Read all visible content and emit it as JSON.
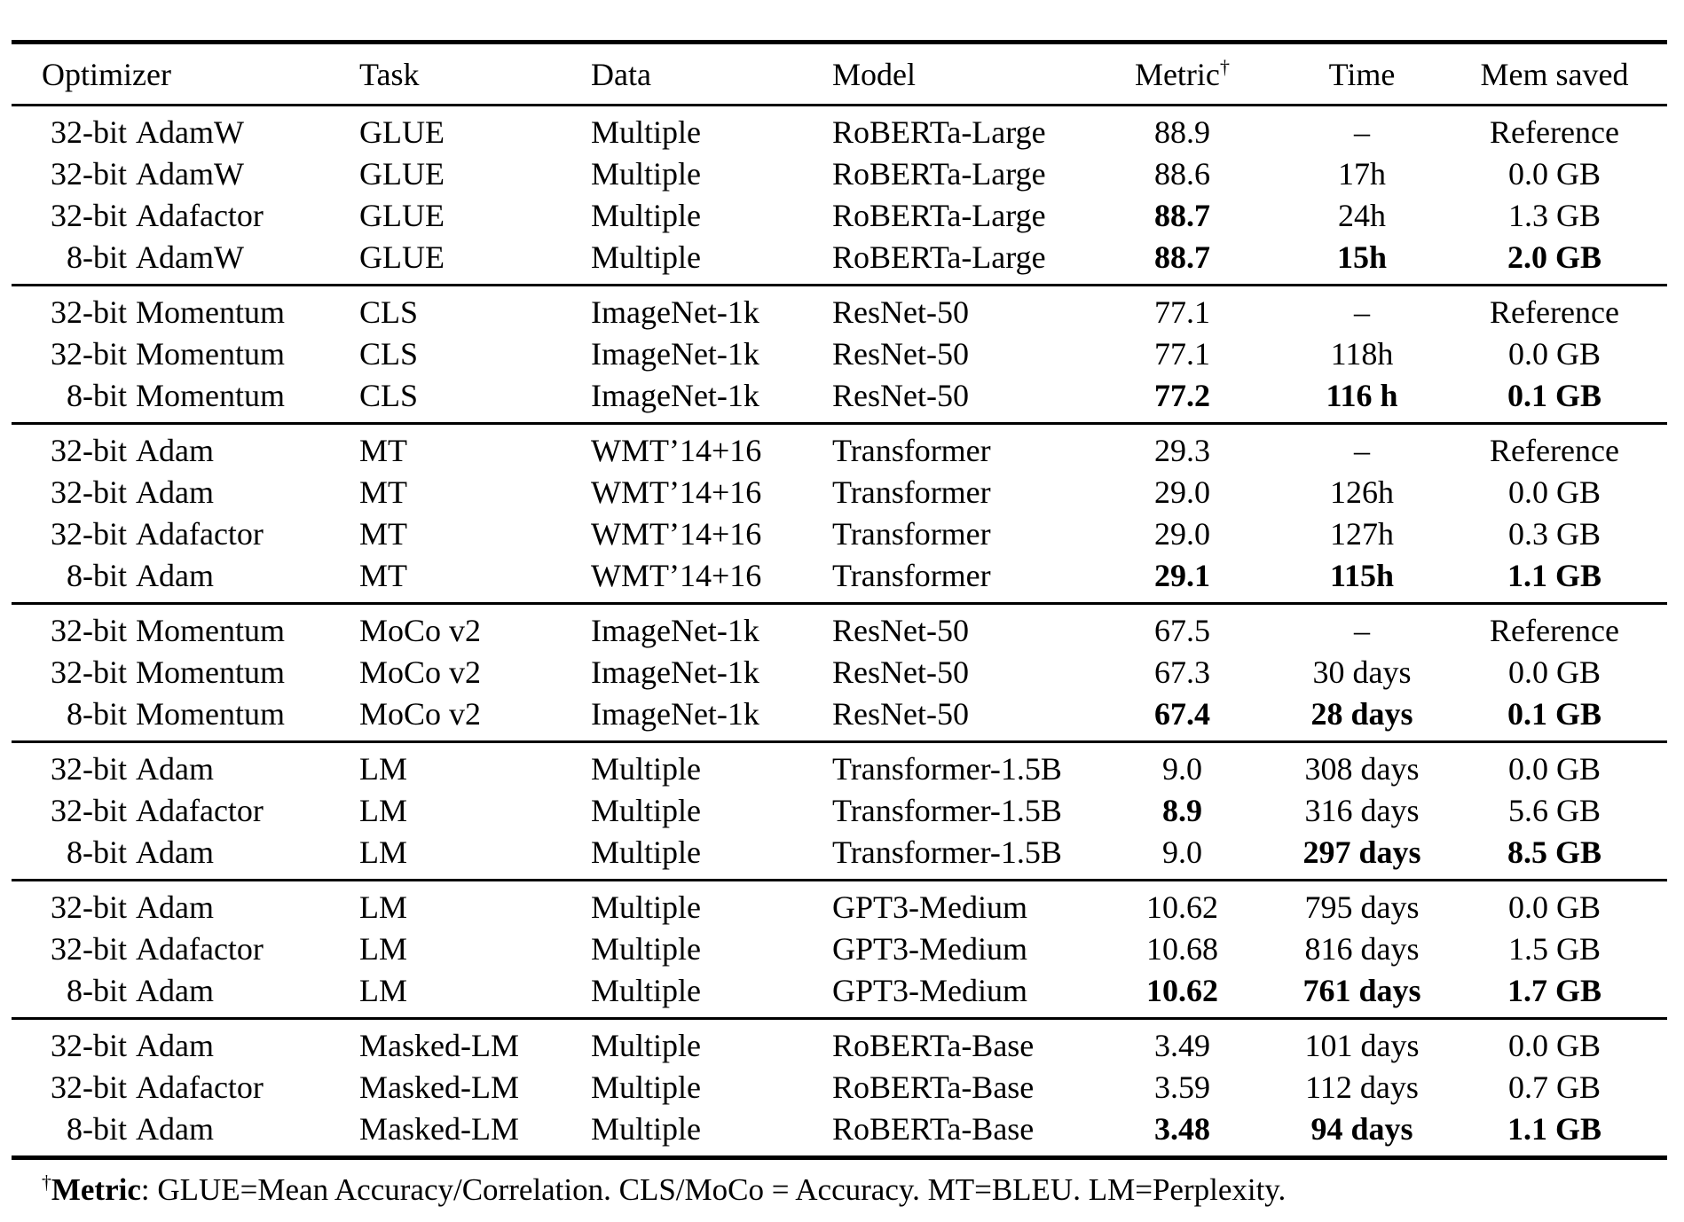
{
  "table": {
    "header": {
      "optimizer": "Optimizer",
      "task": "Task",
      "data": "Data",
      "model": "Model",
      "metric": "Metric",
      "metric_sup": "†",
      "time": "Time",
      "mem": "Mem saved"
    },
    "groups": [
      {
        "rows": [
          {
            "optimizer": {
              "bits": "32-bit",
              "name": "AdamW"
            },
            "task": "GLUE",
            "data": "Multiple",
            "model": "RoBERTa-Large",
            "metric": "88.9",
            "time": "–",
            "mem": "Reference",
            "bold": []
          },
          {
            "optimizer": {
              "bits": "32-bit",
              "name": "AdamW"
            },
            "task": "GLUE",
            "data": "Multiple",
            "model": "RoBERTa-Large",
            "metric": "88.6",
            "time": "17h",
            "mem": "0.0 GB",
            "bold": []
          },
          {
            "optimizer": {
              "bits": "32-bit",
              "name": "Adafactor"
            },
            "task": "GLUE",
            "data": "Multiple",
            "model": "RoBERTa-Large",
            "metric": "88.7",
            "time": "24h",
            "mem": "1.3 GB",
            "bold": [
              "metric"
            ]
          },
          {
            "optimizer": {
              "bits": "8-bit",
              "name": "AdamW"
            },
            "task": "GLUE",
            "data": "Multiple",
            "model": "RoBERTa-Large",
            "metric": "88.7",
            "time": "15h",
            "mem": "2.0 GB",
            "bold": [
              "metric",
              "time",
              "mem"
            ]
          }
        ]
      },
      {
        "rows": [
          {
            "optimizer": {
              "bits": "32-bit",
              "name": "Momentum"
            },
            "task": "CLS",
            "data": "ImageNet-1k",
            "model": "ResNet-50",
            "metric": "77.1",
            "time": "–",
            "mem": "Reference",
            "bold": []
          },
          {
            "optimizer": {
              "bits": "32-bit",
              "name": "Momentum"
            },
            "task": "CLS",
            "data": "ImageNet-1k",
            "model": "ResNet-50",
            "metric": "77.1",
            "time": "118h",
            "mem": "0.0 GB",
            "bold": []
          },
          {
            "optimizer": {
              "bits": "8-bit",
              "name": "Momentum"
            },
            "task": "CLS",
            "data": "ImageNet-1k",
            "model": "ResNet-50",
            "metric": "77.2",
            "time": "116 h",
            "mem": "0.1 GB",
            "bold": [
              "metric",
              "time",
              "mem"
            ]
          }
        ]
      },
      {
        "rows": [
          {
            "optimizer": {
              "bits": "32-bit",
              "name": "Adam"
            },
            "task": "MT",
            "data": "WMT’14+16",
            "model": "Transformer",
            "metric": "29.3",
            "time": "–",
            "mem": "Reference",
            "bold": []
          },
          {
            "optimizer": {
              "bits": "32-bit",
              "name": "Adam"
            },
            "task": "MT",
            "data": "WMT’14+16",
            "model": "Transformer",
            "metric": "29.0",
            "time": "126h",
            "mem": "0.0 GB",
            "bold": []
          },
          {
            "optimizer": {
              "bits": "32-bit",
              "name": "Adafactor"
            },
            "task": "MT",
            "data": "WMT’14+16",
            "model": "Transformer",
            "metric": "29.0",
            "time": "127h",
            "mem": "0.3 GB",
            "bold": []
          },
          {
            "optimizer": {
              "bits": "8-bit",
              "name": "Adam"
            },
            "task": "MT",
            "data": "WMT’14+16",
            "model": "Transformer",
            "metric": "29.1",
            "time": "115h",
            "mem": "1.1 GB",
            "bold": [
              "metric",
              "time",
              "mem"
            ]
          }
        ]
      },
      {
        "rows": [
          {
            "optimizer": {
              "bits": "32-bit",
              "name": "Momentum"
            },
            "task": "MoCo v2",
            "data": "ImageNet-1k",
            "model": "ResNet-50",
            "metric": "67.5",
            "time": "–",
            "mem": "Reference",
            "bold": []
          },
          {
            "optimizer": {
              "bits": "32-bit",
              "name": "Momentum"
            },
            "task": "MoCo v2",
            "data": "ImageNet-1k",
            "model": "ResNet-50",
            "metric": "67.3",
            "time": "30 days",
            "mem": "0.0 GB",
            "bold": []
          },
          {
            "optimizer": {
              "bits": "8-bit",
              "name": "Momentum"
            },
            "task": "MoCo v2",
            "data": "ImageNet-1k",
            "model": "ResNet-50",
            "metric": "67.4",
            "time": "28 days",
            "mem": "0.1 GB",
            "bold": [
              "metric",
              "time",
              "mem"
            ]
          }
        ]
      },
      {
        "rows": [
          {
            "optimizer": {
              "bits": "32-bit",
              "name": "Adam"
            },
            "task": "LM",
            "data": "Multiple",
            "model": "Transformer-1.5B",
            "metric": "9.0",
            "time": "308 days",
            "mem": "0.0 GB",
            "bold": []
          },
          {
            "optimizer": {
              "bits": "32-bit",
              "name": "Adafactor"
            },
            "task": "LM",
            "data": "Multiple",
            "model": "Transformer-1.5B",
            "metric": "8.9",
            "time": "316 days",
            "mem": "5.6 GB",
            "bold": [
              "metric"
            ]
          },
          {
            "optimizer": {
              "bits": "8-bit",
              "name": "Adam"
            },
            "task": "LM",
            "data": "Multiple",
            "model": "Transformer-1.5B",
            "metric": "9.0",
            "time": "297 days",
            "mem": "8.5 GB",
            "bold": [
              "time",
              "mem"
            ]
          }
        ]
      },
      {
        "rows": [
          {
            "optimizer": {
              "bits": "32-bit",
              "name": "Adam"
            },
            "task": "LM",
            "data": "Multiple",
            "model": "GPT3-Medium",
            "metric": "10.62",
            "time": "795 days",
            "mem": "0.0 GB",
            "bold": []
          },
          {
            "optimizer": {
              "bits": "32-bit",
              "name": "Adafactor"
            },
            "task": "LM",
            "data": "Multiple",
            "model": "GPT3-Medium",
            "metric": "10.68",
            "time": "816 days",
            "mem": "1.5 GB",
            "bold": []
          },
          {
            "optimizer": {
              "bits": "8-bit",
              "name": "Adam"
            },
            "task": "LM",
            "data": "Multiple",
            "model": "GPT3-Medium",
            "metric": "10.62",
            "time": "761 days",
            "mem": "1.7 GB",
            "bold": [
              "metric",
              "time",
              "mem"
            ]
          }
        ]
      },
      {
        "rows": [
          {
            "optimizer": {
              "bits": "32-bit",
              "name": "Adam"
            },
            "task": "Masked-LM",
            "data": "Multiple",
            "model": "RoBERTa-Base",
            "metric": "3.49",
            "time": "101 days",
            "mem": "0.0 GB",
            "bold": []
          },
          {
            "optimizer": {
              "bits": "32-bit",
              "name": "Adafactor"
            },
            "task": "Masked-LM",
            "data": "Multiple",
            "model": "RoBERTa-Base",
            "metric": "3.59",
            "time": "112 days",
            "mem": "0.7 GB",
            "bold": []
          },
          {
            "optimizer": {
              "bits": "8-bit",
              "name": "Adam"
            },
            "task": "Masked-LM",
            "data": "Multiple",
            "model": "RoBERTa-Base",
            "metric": "3.48",
            "time": "94 days",
            "mem": "1.1 GB",
            "bold": [
              "metric",
              "time",
              "mem"
            ]
          }
        ]
      }
    ]
  },
  "footnote": {
    "dagger": "†",
    "label": "Metric",
    "rest": ": GLUE=Mean Accuracy/Correlation. CLS/MoCo = Accuracy. MT=BLEU. LM=Perplexity."
  }
}
